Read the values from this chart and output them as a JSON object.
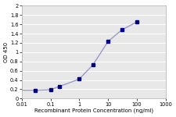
{
  "x_data": [
    0.03,
    0.1,
    0.2,
    1.0,
    3.0,
    10.0,
    30.0,
    100.0
  ],
  "y_data": [
    0.18,
    0.19,
    0.26,
    0.42,
    0.73,
    1.23,
    1.48,
    1.65
  ],
  "line_color": "#9999cc",
  "marker_color": "#00008B",
  "marker_style": "s",
  "marker_size": 2.5,
  "line_width": 1.0,
  "xlabel": "Recombinant Protein Concentration (ng/ml)",
  "ylabel": "OD 450",
  "xlim": [
    0.01,
    1000
  ],
  "ylim": [
    0,
    2
  ],
  "yticks": [
    0,
    0.2,
    0.4,
    0.6,
    0.8,
    1.0,
    1.2,
    1.4,
    1.6,
    1.8,
    2.0
  ],
  "xticks": [
    0.01,
    0.1,
    1,
    10,
    100,
    1000
  ],
  "xtick_labels": [
    "0.01",
    "0.1",
    "1",
    "10",
    "100",
    "1000"
  ],
  "figure_bg_color": "#ffffff",
  "plot_bg_color": "#e8e8e8",
  "xlabel_fontsize": 5.0,
  "ylabel_fontsize": 5.0,
  "tick_fontsize": 4.8,
  "grid_color": "#ffffff",
  "grid_linewidth": 0.7,
  "spine_color": "#aaaaaa",
  "spine_linewidth": 0.5
}
